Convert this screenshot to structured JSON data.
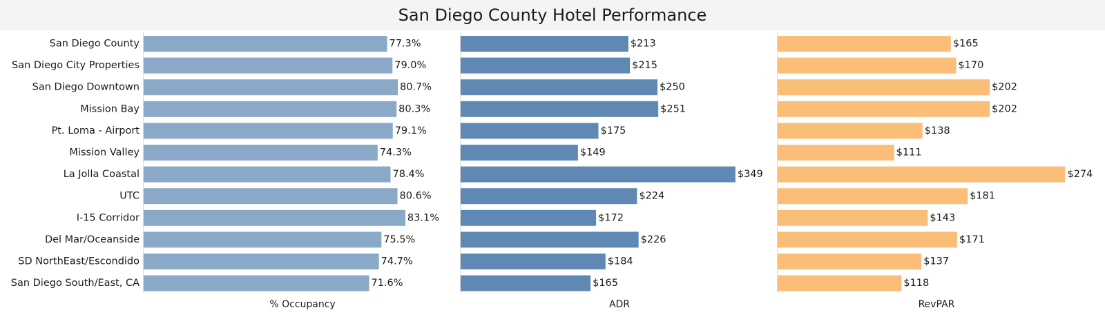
{
  "chart_data": {
    "type": "bar",
    "orientation": "horizontal",
    "title": "San Diego County Hotel Performance",
    "categories": [
      "San Diego County",
      "San Diego City Properties",
      "San Diego Downtown",
      "Mission Bay",
      "Pt. Loma - Airport",
      "Mission Valley",
      "La Jolla Coastal",
      "UTC",
      "I-15 Corridor",
      "Del Mar/Oceanside",
      "SD NorthEast/Escondido",
      "San Diego South/East, CA"
    ],
    "series": [
      {
        "name": "% Occupancy",
        "values": [
          77.3,
          79.0,
          80.7,
          80.3,
          79.1,
          74.3,
          78.4,
          80.6,
          83.1,
          75.5,
          74.7,
          71.6
        ],
        "labels": [
          "77.3%",
          "79.0%",
          "80.7%",
          "80.3%",
          "79.1%",
          "74.3%",
          "78.4%",
          "80.6%",
          "83.1%",
          "75.5%",
          "74.7%",
          "71.6%"
        ],
        "xlim": [
          0,
          100
        ],
        "color": "#8aa8c8"
      },
      {
        "name": "ADR",
        "values": [
          213,
          215,
          250,
          251,
          175,
          149,
          349,
          224,
          172,
          226,
          184,
          165
        ],
        "labels": [
          "$213",
          "$215",
          "$250",
          "$251",
          "$175",
          "$149",
          "$349",
          "$224",
          "$172",
          "$226",
          "$184",
          "$165"
        ],
        "xlim": [
          0,
          400
        ],
        "color": "#6088b4"
      },
      {
        "name": "RevPAR",
        "values": [
          165,
          170,
          202,
          202,
          138,
          111,
          274,
          181,
          143,
          171,
          137,
          118
        ],
        "labels": [
          "$165",
          "$170",
          "$202",
          "$202",
          "$138",
          "$111",
          "$274",
          "$181",
          "$143",
          "$171",
          "$137",
          "$118"
        ],
        "xlim": [
          0,
          300
        ],
        "color": "#fbbe78"
      }
    ],
    "grid": false,
    "legend": "none"
  }
}
